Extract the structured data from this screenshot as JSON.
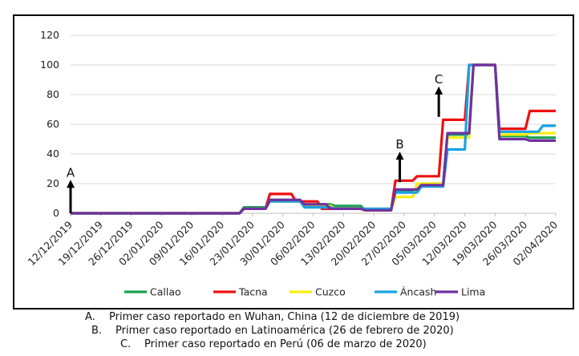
{
  "chart_data": {
    "type": "line",
    "title": "",
    "xlabel": "",
    "ylabel": "",
    "ylim": [
      0,
      120
    ],
    "yticks": [
      0,
      20,
      40,
      60,
      80,
      100,
      120
    ],
    "grid": true,
    "legend_position": "bottom",
    "x_tick_labels": [
      "12/12/2019",
      "19/12/2019",
      "26/12/2019",
      "02/01/2020",
      "09/01/2020",
      "16/01/2020",
      "23/01/2020",
      "30/01/2020",
      "06/02/2020",
      "13/02/2020",
      "20/02/2020",
      "27/02/2020",
      "05/03/2020",
      "12/03/2020",
      "19/03/2020",
      "26/03/2020",
      "02/04/2020"
    ],
    "series": [
      {
        "name": "Callao",
        "color": "#1aa150",
        "points": [
          [
            "12/12/2019",
            0
          ],
          [
            "20/01/2020",
            0
          ],
          [
            "21/01/2020",
            4
          ],
          [
            "26/01/2020",
            4
          ],
          [
            "27/01/2020",
            9
          ],
          [
            "03/02/2020",
            9
          ],
          [
            "04/02/2020",
            6
          ],
          [
            "10/02/2020",
            6
          ],
          [
            "11/02/2020",
            5
          ],
          [
            "17/02/2020",
            5
          ],
          [
            "18/02/2020",
            2
          ],
          [
            "24/02/2020",
            2
          ],
          [
            "25/02/2020",
            15
          ],
          [
            "01/03/2020",
            15
          ],
          [
            "02/03/2020",
            20
          ],
          [
            "07/03/2020",
            20
          ],
          [
            "08/03/2020",
            53
          ],
          [
            "13/03/2020",
            53
          ],
          [
            "14/03/2020",
            100
          ],
          [
            "19/03/2020",
            100
          ],
          [
            "20/03/2020",
            52
          ],
          [
            "26/03/2020",
            52
          ],
          [
            "27/03/2020",
            51
          ],
          [
            "02/04/2020",
            51
          ]
        ]
      },
      {
        "name": "Tacna",
        "color": "#ee1111",
        "points": [
          [
            "12/12/2019",
            0
          ],
          [
            "20/01/2020",
            0
          ],
          [
            "21/01/2020",
            3
          ],
          [
            "26/01/2020",
            3
          ],
          [
            "27/01/2020",
            13
          ],
          [
            "01/02/2020",
            13
          ],
          [
            "02/02/2020",
            8
          ],
          [
            "07/02/2020",
            8
          ],
          [
            "08/02/2020",
            3
          ],
          [
            "17/02/2020",
            3
          ],
          [
            "18/02/2020",
            2
          ],
          [
            "24/02/2020",
            2
          ],
          [
            "25/02/2020",
            22
          ],
          [
            "29/02/2020",
            22
          ],
          [
            "01/03/2020",
            25
          ],
          [
            "06/03/2020",
            25
          ],
          [
            "07/03/2020",
            63
          ],
          [
            "12/03/2020",
            63
          ],
          [
            "13/03/2020",
            100
          ],
          [
            "19/03/2020",
            100
          ],
          [
            "20/03/2020",
            57
          ],
          [
            "26/03/2020",
            57
          ],
          [
            "27/03/2020",
            69
          ],
          [
            "02/04/2020",
            69
          ]
        ]
      },
      {
        "name": "Cuzco",
        "color": "#f8ee0a",
        "points": [
          [
            "12/12/2019",
            0
          ],
          [
            "20/01/2020",
            0
          ],
          [
            "21/01/2020",
            3
          ],
          [
            "26/01/2020",
            3
          ],
          [
            "27/01/2020",
            8
          ],
          [
            "03/02/2020",
            8
          ],
          [
            "04/02/2020",
            5
          ],
          [
            "10/02/2020",
            5
          ],
          [
            "11/02/2020",
            3
          ],
          [
            "17/02/2020",
            3
          ],
          [
            "18/02/2020",
            2
          ],
          [
            "24/02/2020",
            2
          ],
          [
            "25/02/2020",
            11
          ],
          [
            "29/02/2020",
            11
          ],
          [
            "01/03/2020",
            20
          ],
          [
            "07/03/2020",
            20
          ],
          [
            "08/03/2020",
            51
          ],
          [
            "13/03/2020",
            51
          ],
          [
            "14/03/2020",
            100
          ],
          [
            "19/03/2020",
            100
          ],
          [
            "20/03/2020",
            53
          ],
          [
            "26/03/2020",
            53
          ],
          [
            "27/03/2020",
            54
          ],
          [
            "02/04/2020",
            54
          ]
        ]
      },
      {
        "name": "Áncash",
        "color": "#19a2e3",
        "points": [
          [
            "12/12/2019",
            0
          ],
          [
            "20/01/2020",
            0
          ],
          [
            "21/01/2020",
            3
          ],
          [
            "26/01/2020",
            3
          ],
          [
            "27/01/2020",
            8
          ],
          [
            "03/02/2020",
            8
          ],
          [
            "04/02/2020",
            4
          ],
          [
            "10/02/2020",
            4
          ],
          [
            "11/02/2020",
            3
          ],
          [
            "17/02/2020",
            3
          ],
          [
            "18/02/2020",
            3
          ],
          [
            "24/02/2020",
            3
          ],
          [
            "25/02/2020",
            14
          ],
          [
            "01/03/2020",
            14
          ],
          [
            "02/03/2020",
            18
          ],
          [
            "07/03/2020",
            18
          ],
          [
            "08/03/2020",
            43
          ],
          [
            "12/03/2020",
            43
          ],
          [
            "13/03/2020",
            100
          ],
          [
            "19/03/2020",
            100
          ],
          [
            "20/03/2020",
            55
          ],
          [
            "29/03/2020",
            55
          ],
          [
            "30/03/2020",
            59
          ],
          [
            "02/04/2020",
            59
          ]
        ]
      },
      {
        "name": "Lima",
        "color": "#7030a0",
        "points": [
          [
            "12/12/2019",
            0
          ],
          [
            "20/01/2020",
            0
          ],
          [
            "21/01/2020",
            3
          ],
          [
            "26/01/2020",
            3
          ],
          [
            "27/01/2020",
            9
          ],
          [
            "03/02/2020",
            9
          ],
          [
            "04/02/2020",
            6
          ],
          [
            "09/02/2020",
            6
          ],
          [
            "10/02/2020",
            3
          ],
          [
            "17/02/2020",
            3
          ],
          [
            "18/02/2020",
            2
          ],
          [
            "24/02/2020",
            2
          ],
          [
            "25/02/2020",
            16
          ],
          [
            "01/03/2020",
            16
          ],
          [
            "02/03/2020",
            19
          ],
          [
            "07/03/2020",
            19
          ],
          [
            "08/03/2020",
            54
          ],
          [
            "13/03/2020",
            54
          ],
          [
            "14/03/2020",
            100
          ],
          [
            "19/03/2020",
            100
          ],
          [
            "20/03/2020",
            50
          ],
          [
            "26/03/2020",
            50
          ],
          [
            "27/03/2020",
            49
          ],
          [
            "02/04/2020",
            49
          ]
        ]
      }
    ],
    "annotations": [
      {
        "label": "A",
        "x": "12/12/2019",
        "y_from": 0,
        "y_to": 22
      },
      {
        "label": "B",
        "x": "26/02/2020",
        "y_from": 21,
        "y_to": 41
      },
      {
        "label": "C",
        "x": "06/03/2020",
        "y_from": 65,
        "y_to": 85
      }
    ]
  },
  "footnotes": [
    {
      "letter": "A.",
      "text": "Primer caso reportado en Wuhan, China (12 de diciembre de 2019)"
    },
    {
      "letter": "B.",
      "text": "Primer caso reportado en Latinoamérica (26 de febrero de 2020)"
    },
    {
      "letter": "C.",
      "text": "Primer caso reportado en Perú (06 de marzo de 2020)"
    }
  ]
}
